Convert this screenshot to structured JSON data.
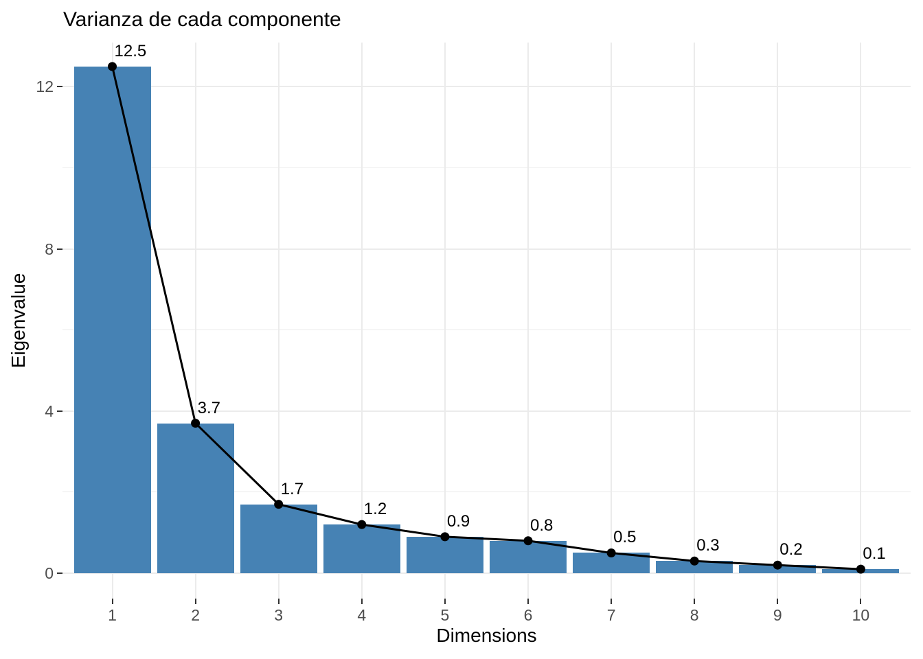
{
  "chart_data": {
    "type": "bar",
    "overlay": "line+points",
    "title": "Varianza de cada componente",
    "xlabel": "Dimensions",
    "ylabel": "Eigenvalue",
    "categories": [
      "1",
      "2",
      "3",
      "4",
      "5",
      "6",
      "7",
      "8",
      "9",
      "10"
    ],
    "values": [
      12.5,
      3.7,
      1.7,
      1.2,
      0.9,
      0.8,
      0.5,
      0.3,
      0.2,
      0.1
    ],
    "point_labels": [
      "12.5",
      "3.7",
      "1.7",
      "1.2",
      "0.9",
      "0.8",
      "0.5",
      "0.3",
      "0.2",
      "0.1"
    ],
    "y_ticks": [
      0,
      4,
      8,
      12
    ],
    "y_minor_gridlines": [
      2,
      6,
      10
    ],
    "ylim": [
      -0.63,
      13.1
    ],
    "grid": "horizontal major+minor, vertical major only",
    "legend": "none",
    "colors": {
      "bar_fill": "#4682B4",
      "line": "#000000",
      "point": "#000000",
      "grid": "#EBEBEB",
      "tick_mark": "#333333",
      "tick_label": "#4D4D4D",
      "text": "#000000",
      "background": "#FFFFFF"
    }
  }
}
